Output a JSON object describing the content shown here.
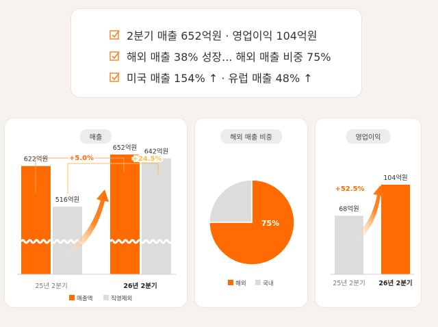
{
  "summary": {
    "lines": [
      "2분기 매출 652억원 · 영업이익 104억원",
      "해외 매출 38% 성장... 해외 매출 비중 75%",
      "미국 매출 154% ↑ · 유럽 매출 48% ↑"
    ]
  },
  "colors": {
    "orange": "#ff6b00",
    "gray": "#dcdcdc",
    "accent_yellow": "#f5c04a",
    "check": "#f08a2c"
  },
  "chart_data": [
    {
      "type": "bar",
      "title": "매출",
      "categories": [
        "25년 2분기",
        "26년 2분기"
      ],
      "series": [
        {
          "name": "매출액",
          "values": [
            622,
            652
          ],
          "labels": [
            "622억원",
            "652억원"
          ]
        },
        {
          "name": "직영제외",
          "values": [
            516,
            642
          ],
          "labels": [
            "516억원",
            "642억원"
          ]
        }
      ],
      "annotations": [
        "+5.0%",
        "+24.5%"
      ],
      "axis_break": true,
      "legend_position": "bottom"
    },
    {
      "type": "pie",
      "title": "해외 매출 비중",
      "slices": [
        {
          "name": "해외",
          "value": 75,
          "label": "75%"
        },
        {
          "name": "국내",
          "value": 25
        }
      ],
      "legend_position": "bottom"
    },
    {
      "type": "bar",
      "title": "영업이익",
      "categories": [
        "25년 2분기",
        "26년 2분기"
      ],
      "values": [
        68,
        104
      ],
      "labels": [
        "68억원",
        "104억원"
      ],
      "annotation": "+52.5%"
    }
  ]
}
